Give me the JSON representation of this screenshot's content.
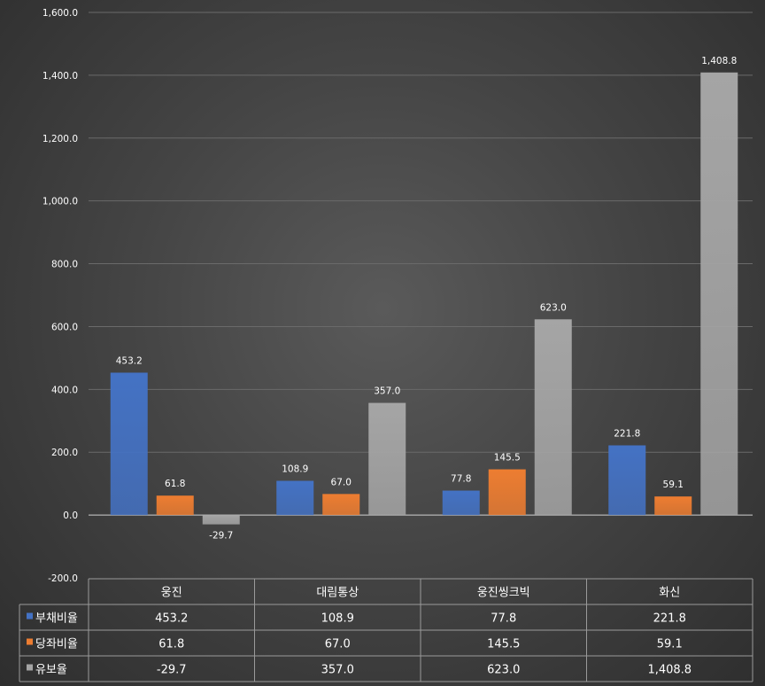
{
  "chart_data": {
    "type": "bar",
    "categories": [
      "웅진",
      "대림통상",
      "웅진씽크빅",
      "화신"
    ],
    "series": [
      {
        "name": "부채비율",
        "color": "#4472c4",
        "values": [
          453.2,
          108.9,
          77.8,
          221.8
        ],
        "labels": [
          "453.2",
          "108.9",
          "77.8",
          "221.8"
        ]
      },
      {
        "name": "당좌비율",
        "color": "#ed7d31",
        "values": [
          61.8,
          67.0,
          145.5,
          59.1
        ],
        "labels": [
          "61.8",
          "67.0",
          "145.5",
          "59.1"
        ]
      },
      {
        "name": "유보율",
        "color": "#a5a5a5",
        "values": [
          -29.7,
          357.0,
          623.0,
          1408.8
        ],
        "labels": [
          "-29.7",
          "357.0",
          "623.0",
          "1,408.8"
        ]
      }
    ],
    "ylim": [
      -200,
      1600
    ],
    "yticks": [
      -200,
      0,
      200,
      400,
      600,
      800,
      1000,
      1200,
      1400,
      1600
    ],
    "ytick_labels": [
      "-200.0",
      "0.0",
      "200.0",
      "400.0",
      "600.0",
      "800.0",
      "1,000.0",
      "1,200.0",
      "1,400.0",
      "1,600.0"
    ],
    "grid": true,
    "legend": "data-table",
    "title": "",
    "xlabel": "",
    "ylabel": ""
  }
}
